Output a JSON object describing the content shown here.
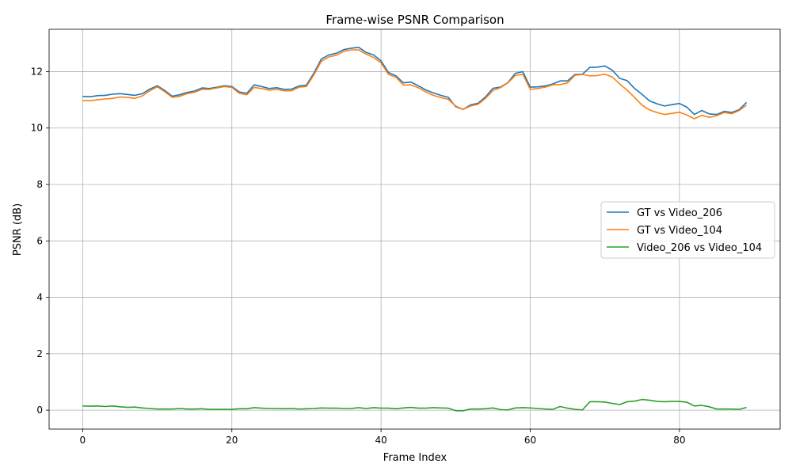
{
  "chart_data": {
    "type": "line",
    "title": "Frame-wise PSNR Comparison",
    "xlabel": "Frame Index",
    "ylabel": "PSNR (dB)",
    "xlim": [
      -4.5,
      93.5
    ],
    "ylim": [
      -0.67,
      13.5
    ],
    "xticks": [
      0,
      20,
      40,
      60,
      80
    ],
    "yticks": [
      0,
      2,
      4,
      6,
      8,
      10,
      12
    ],
    "grid": true,
    "legend_position": "center-right",
    "x": [
      0,
      1,
      2,
      3,
      4,
      5,
      6,
      7,
      8,
      9,
      10,
      11,
      12,
      13,
      14,
      15,
      16,
      17,
      18,
      19,
      20,
      21,
      22,
      23,
      24,
      25,
      26,
      27,
      28,
      29,
      30,
      31,
      32,
      33,
      34,
      35,
      36,
      37,
      38,
      39,
      40,
      41,
      42,
      43,
      44,
      45,
      46,
      47,
      48,
      49,
      50,
      51,
      52,
      53,
      54,
      55,
      56,
      57,
      58,
      59,
      60,
      61,
      62,
      63,
      64,
      65,
      66,
      67,
      68,
      69,
      70,
      71,
      72,
      73,
      74,
      75,
      76,
      77,
      78,
      79,
      80,
      81,
      82,
      83,
      84,
      85,
      86,
      87,
      88,
      89
    ],
    "series": [
      {
        "name": "GT vs Video_206",
        "color": "#1f77b4",
        "values": [
          11.12,
          11.11,
          11.15,
          11.16,
          11.2,
          11.22,
          11.19,
          11.16,
          11.22,
          11.38,
          11.5,
          11.33,
          11.13,
          11.18,
          11.26,
          11.31,
          11.42,
          11.4,
          11.45,
          11.5,
          11.47,
          11.28,
          11.23,
          11.53,
          11.47,
          11.4,
          11.43,
          11.37,
          11.38,
          11.49,
          11.52,
          11.95,
          12.45,
          12.59,
          12.65,
          12.78,
          12.83,
          12.86,
          12.68,
          12.59,
          12.38,
          11.97,
          11.85,
          11.6,
          11.63,
          11.5,
          11.35,
          11.25,
          11.16,
          11.09,
          10.76,
          10.66,
          10.82,
          10.88,
          11.1,
          11.41,
          11.45,
          11.61,
          11.94,
          12.0,
          11.45,
          11.46,
          11.49,
          11.56,
          11.67,
          11.67,
          11.9,
          11.91,
          12.15,
          12.16,
          12.2,
          12.05,
          11.76,
          11.68,
          11.4,
          11.19,
          10.96,
          10.86,
          10.78,
          10.83,
          10.87,
          10.74,
          10.48,
          10.62,
          10.5,
          10.48,
          10.59,
          10.55,
          10.65,
          10.91
        ]
      },
      {
        "name": "GT vs Video_104",
        "color": "#ff7f0e",
        "values": [
          10.97,
          10.97,
          11.0,
          11.03,
          11.05,
          11.1,
          11.09,
          11.05,
          11.14,
          11.32,
          11.46,
          11.29,
          11.09,
          11.12,
          11.22,
          11.27,
          11.37,
          11.37,
          11.42,
          11.47,
          11.44,
          11.23,
          11.18,
          11.44,
          11.4,
          11.34,
          11.37,
          11.32,
          11.32,
          11.45,
          11.47,
          11.89,
          12.37,
          12.52,
          12.58,
          12.72,
          12.77,
          12.77,
          12.62,
          12.5,
          12.31,
          11.9,
          11.8,
          11.52,
          11.53,
          11.43,
          11.28,
          11.16,
          11.08,
          11.02,
          10.78,
          10.66,
          10.78,
          10.84,
          11.05,
          11.33,
          11.43,
          11.6,
          11.86,
          11.91,
          11.37,
          11.4,
          11.45,
          11.53,
          11.54,
          11.6,
          11.87,
          11.9,
          11.85,
          11.86,
          11.91,
          11.81,
          11.56,
          11.34,
          11.08,
          10.81,
          10.64,
          10.55,
          10.48,
          10.52,
          10.56,
          10.46,
          10.33,
          10.45,
          10.38,
          10.44,
          10.55,
          10.51,
          10.62,
          10.81
        ]
      },
      {
        "name": "Video_206 vs Video_104",
        "color": "#2ca02c",
        "values": [
          0.15,
          0.14,
          0.15,
          0.13,
          0.15,
          0.12,
          0.1,
          0.11,
          0.08,
          0.06,
          0.04,
          0.04,
          0.04,
          0.06,
          0.04,
          0.04,
          0.05,
          0.03,
          0.03,
          0.03,
          0.03,
          0.05,
          0.05,
          0.09,
          0.07,
          0.06,
          0.06,
          0.05,
          0.06,
          0.04,
          0.05,
          0.06,
          0.08,
          0.07,
          0.07,
          0.06,
          0.06,
          0.09,
          0.06,
          0.09,
          0.07,
          0.07,
          0.05,
          0.08,
          0.1,
          0.07,
          0.07,
          0.09,
          0.08,
          0.07,
          -0.02,
          -0.02,
          0.04,
          0.04,
          0.05,
          0.08,
          0.02,
          0.01,
          0.08,
          0.09,
          0.08,
          0.06,
          0.04,
          0.03,
          0.13,
          0.07,
          0.03,
          0.01,
          0.3,
          0.3,
          0.29,
          0.24,
          0.2,
          0.3,
          0.32,
          0.38,
          0.35,
          0.31,
          0.3,
          0.31,
          0.31,
          0.28,
          0.15,
          0.17,
          0.12,
          0.04,
          0.04,
          0.04,
          0.03,
          0.1
        ]
      }
    ]
  }
}
